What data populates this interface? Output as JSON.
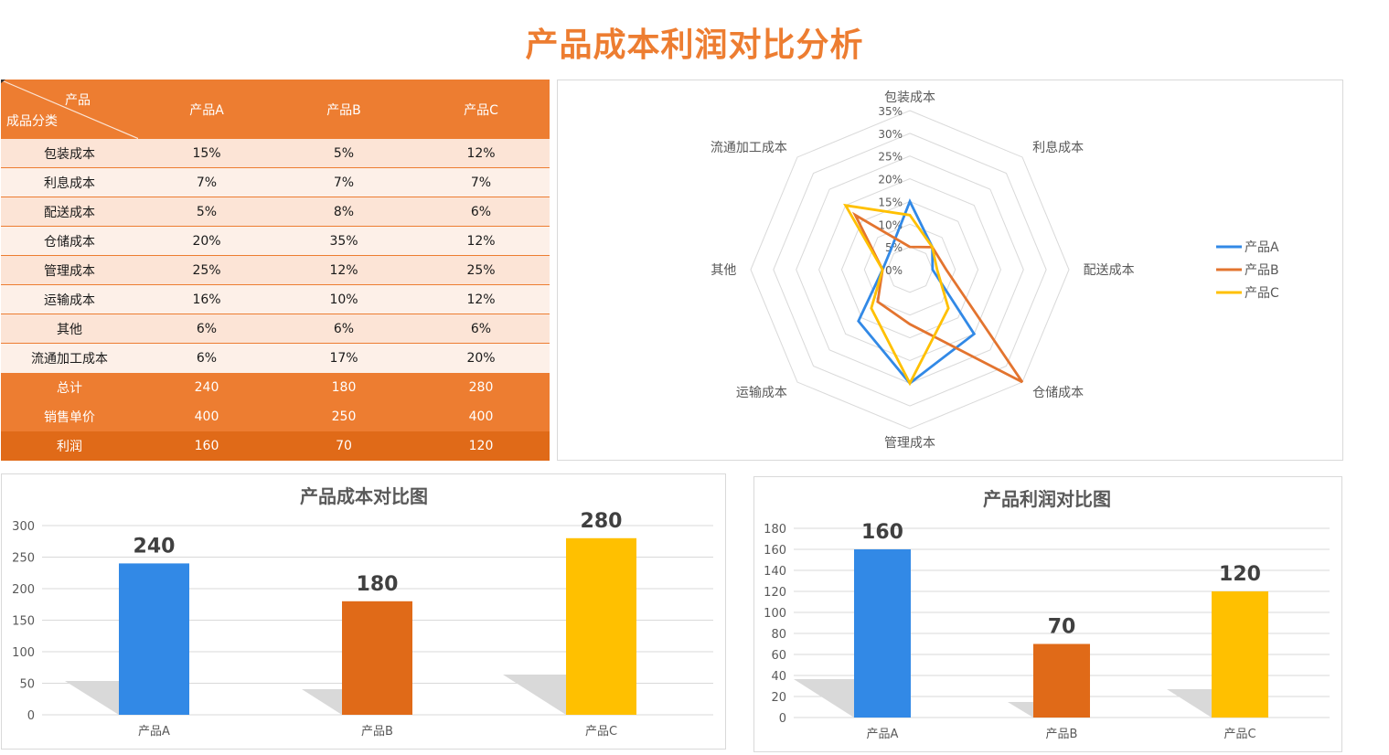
{
  "page": {
    "title": "产品成本利润对比分析"
  },
  "colors": {
    "accent": "#ED7D31",
    "accent_dark": "#E06A18",
    "row_a": "#FCE4D6",
    "row_b": "#FDF0E8",
    "productA": "#3289E6",
    "productB": "#E06A18",
    "productC": "#FFC000",
    "radarB_line": "#E3742F",
    "gridline": "#D9D9D9",
    "shadow": "#D9D9D9"
  },
  "table": {
    "header": {
      "corner_top": "产品",
      "corner_bottom": "成品分类",
      "columns": [
        "产品A",
        "产品B",
        "产品C"
      ]
    },
    "rows": [
      {
        "label": "包装成本",
        "values": [
          "15%",
          "5%",
          "12%"
        ]
      },
      {
        "label": "利息成本",
        "values": [
          "7%",
          "7%",
          "7%"
        ]
      },
      {
        "label": "配送成本",
        "values": [
          "5%",
          "8%",
          "6%"
        ]
      },
      {
        "label": "仓储成本",
        "values": [
          "20%",
          "35%",
          "12%"
        ]
      },
      {
        "label": "管理成本",
        "values": [
          "25%",
          "12%",
          "25%"
        ]
      },
      {
        "label": "运输成本",
        "values": [
          "16%",
          "10%",
          "12%"
        ]
      },
      {
        "label": "其他",
        "values": [
          "6%",
          "6%",
          "6%"
        ]
      },
      {
        "label": "流通加工成本",
        "values": [
          "6%",
          "17%",
          "20%"
        ]
      }
    ],
    "totals": [
      {
        "label": "总计",
        "values": [
          "240",
          "180",
          "280"
        ]
      },
      {
        "label": "销售单价",
        "values": [
          "400",
          "250",
          "400"
        ]
      }
    ],
    "profit": {
      "label": "利润",
      "values": [
        "160",
        "70",
        "120"
      ]
    }
  },
  "chart_data": [
    {
      "type": "radar",
      "title": "",
      "categories": [
        "包装成本",
        "利息成本",
        "配送成本",
        "仓储成本",
        "管理成本",
        "运输成本",
        "其他",
        "流通加工成本"
      ],
      "series": [
        {
          "name": "产品A",
          "values": [
            15,
            7,
            5,
            20,
            25,
            16,
            6,
            6
          ]
        },
        {
          "name": "产品B",
          "values": [
            5,
            7,
            8,
            35,
            12,
            10,
            6,
            17
          ]
        },
        {
          "name": "产品C",
          "values": [
            12,
            7,
            6,
            12,
            25,
            12,
            6,
            20
          ]
        }
      ],
      "ticks": [
        "0%",
        "5%",
        "10%",
        "15%",
        "20%",
        "25%",
        "30%",
        "35%"
      ],
      "rlim": [
        0,
        35
      ],
      "legend_position": "right",
      "grid": true
    },
    {
      "type": "bar",
      "title": "产品成本对比图",
      "categories": [
        "产品A",
        "产品B",
        "产品C"
      ],
      "values": [
        240,
        180,
        280
      ],
      "ylim": [
        0,
        300
      ],
      "yticks": [
        0,
        50,
        100,
        150,
        200,
        250,
        300
      ],
      "xlabel": "",
      "ylabel": "",
      "data_labels": true,
      "grid": true
    },
    {
      "type": "bar",
      "title": "产品利润对比图",
      "categories": [
        "产品A",
        "产品B",
        "产品C"
      ],
      "values": [
        160,
        70,
        120
      ],
      "ylim": [
        0,
        180
      ],
      "yticks": [
        0,
        20,
        40,
        60,
        80,
        100,
        120,
        140,
        160,
        180
      ],
      "xlabel": "",
      "ylabel": "",
      "data_labels": true,
      "grid": true
    }
  ]
}
